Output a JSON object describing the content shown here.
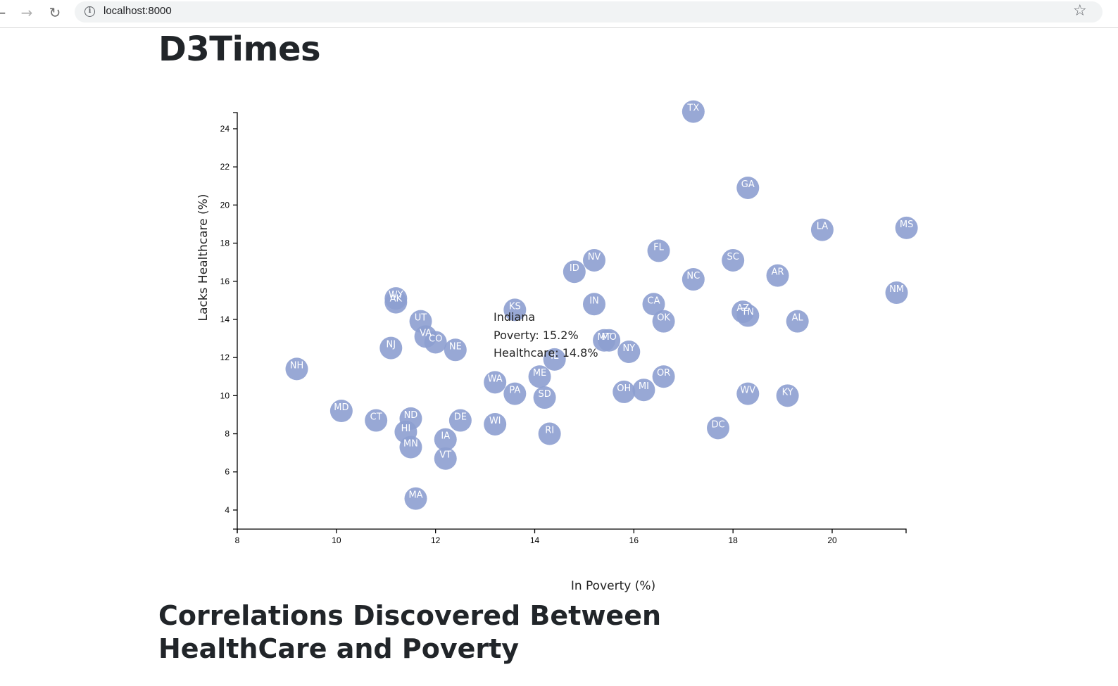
{
  "browser": {
    "back_icon": "arrow-left-icon",
    "forward_icon": "arrow-right-icon",
    "reload_icon": "reload-icon",
    "info_icon": "info-icon",
    "star_icon": "star-icon",
    "url": "localhost:8000"
  },
  "page": {
    "title": "D3Times",
    "section_title": "Correlations Discovered Between HealthCare and Poverty"
  },
  "tooltip": {
    "state": "Indiana",
    "poverty": "Poverty: 15.2%",
    "healthcare": "Healthcare: 14.8%"
  },
  "colors": {
    "marker": "#8d9fd0",
    "marker_label": "#ffffff"
  },
  "chart_data": {
    "type": "scatter",
    "xlabel": "In Poverty (%)",
    "ylabel": "Lacks Healthcare (%)",
    "xlim": [
      8,
      21.5
    ],
    "ylim": [
      3,
      25
    ],
    "xticks": [
      8,
      10,
      12,
      14,
      16,
      18,
      20
    ],
    "yticks": [
      4,
      6,
      8,
      10,
      12,
      14,
      16,
      18,
      20,
      22,
      24
    ],
    "grid": false,
    "points": [
      {
        "abbr": "TX",
        "x": 17.2,
        "y": 24.9
      },
      {
        "abbr": "GA",
        "x": 18.3,
        "y": 20.9
      },
      {
        "abbr": "LA",
        "x": 19.8,
        "y": 18.7
      },
      {
        "abbr": "MS",
        "x": 21.5,
        "y": 18.8
      },
      {
        "abbr": "FL",
        "x": 16.5,
        "y": 17.6
      },
      {
        "abbr": "NV",
        "x": 15.2,
        "y": 17.1
      },
      {
        "abbr": "SC",
        "x": 18.0,
        "y": 17.1
      },
      {
        "abbr": "ID",
        "x": 14.8,
        "y": 16.5
      },
      {
        "abbr": "AR",
        "x": 18.9,
        "y": 16.3
      },
      {
        "abbr": "NC",
        "x": 17.2,
        "y": 16.1
      },
      {
        "abbr": "NM",
        "x": 21.3,
        "y": 15.4
      },
      {
        "abbr": "WY",
        "x": 11.2,
        "y": 15.1
      },
      {
        "abbr": "AK",
        "x": 11.2,
        "y": 14.9
      },
      {
        "abbr": "IN",
        "x": 15.2,
        "y": 14.8
      },
      {
        "abbr": "CA",
        "x": 16.4,
        "y": 14.8
      },
      {
        "abbr": "KS",
        "x": 13.6,
        "y": 14.5
      },
      {
        "abbr": "AZ",
        "x": 18.2,
        "y": 14.4
      },
      {
        "abbr": "TN",
        "x": 18.3,
        "y": 14.2
      },
      {
        "abbr": "OK",
        "x": 16.6,
        "y": 13.9
      },
      {
        "abbr": "AL",
        "x": 19.3,
        "y": 13.9
      },
      {
        "abbr": "UT",
        "x": 11.7,
        "y": 13.9
      },
      {
        "abbr": "VA",
        "x": 11.8,
        "y": 13.1
      },
      {
        "abbr": "CO",
        "x": 12.0,
        "y": 12.8
      },
      {
        "abbr": "MT",
        "x": 15.4,
        "y": 12.9
      },
      {
        "abbr": "MO",
        "x": 15.5,
        "y": 12.9
      },
      {
        "abbr": "NJ",
        "x": 11.1,
        "y": 12.5
      },
      {
        "abbr": "NE",
        "x": 12.4,
        "y": 12.4
      },
      {
        "abbr": "NY",
        "x": 15.9,
        "y": 12.3
      },
      {
        "abbr": "IL",
        "x": 14.4,
        "y": 11.9
      },
      {
        "abbr": "NH",
        "x": 9.2,
        "y": 11.4
      },
      {
        "abbr": "ME",
        "x": 14.1,
        "y": 11.0
      },
      {
        "abbr": "OR",
        "x": 16.6,
        "y": 11.0
      },
      {
        "abbr": "WA",
        "x": 13.2,
        "y": 10.7
      },
      {
        "abbr": "OH",
        "x": 15.8,
        "y": 10.2
      },
      {
        "abbr": "MI",
        "x": 16.2,
        "y": 10.3
      },
      {
        "abbr": "PA",
        "x": 13.6,
        "y": 10.1
      },
      {
        "abbr": "WV",
        "x": 18.3,
        "y": 10.1
      },
      {
        "abbr": "KY",
        "x": 19.1,
        "y": 10.0
      },
      {
        "abbr": "SD",
        "x": 14.2,
        "y": 9.9
      },
      {
        "abbr": "MD",
        "x": 10.1,
        "y": 9.2
      },
      {
        "abbr": "ND",
        "x": 11.5,
        "y": 8.8
      },
      {
        "abbr": "CT",
        "x": 10.8,
        "y": 8.7
      },
      {
        "abbr": "DE",
        "x": 12.5,
        "y": 8.7
      },
      {
        "abbr": "WI",
        "x": 13.2,
        "y": 8.5
      },
      {
        "abbr": "DC",
        "x": 17.7,
        "y": 8.3
      },
      {
        "abbr": "HI",
        "x": 11.4,
        "y": 8.1
      },
      {
        "abbr": "RI",
        "x": 14.3,
        "y": 8.0
      },
      {
        "abbr": "IA",
        "x": 12.2,
        "y": 7.7
      },
      {
        "abbr": "MN",
        "x": 11.5,
        "y": 7.3
      },
      {
        "abbr": "VT",
        "x": 12.2,
        "y": 6.7
      },
      {
        "abbr": "MA",
        "x": 11.6,
        "y": 4.6
      }
    ]
  }
}
